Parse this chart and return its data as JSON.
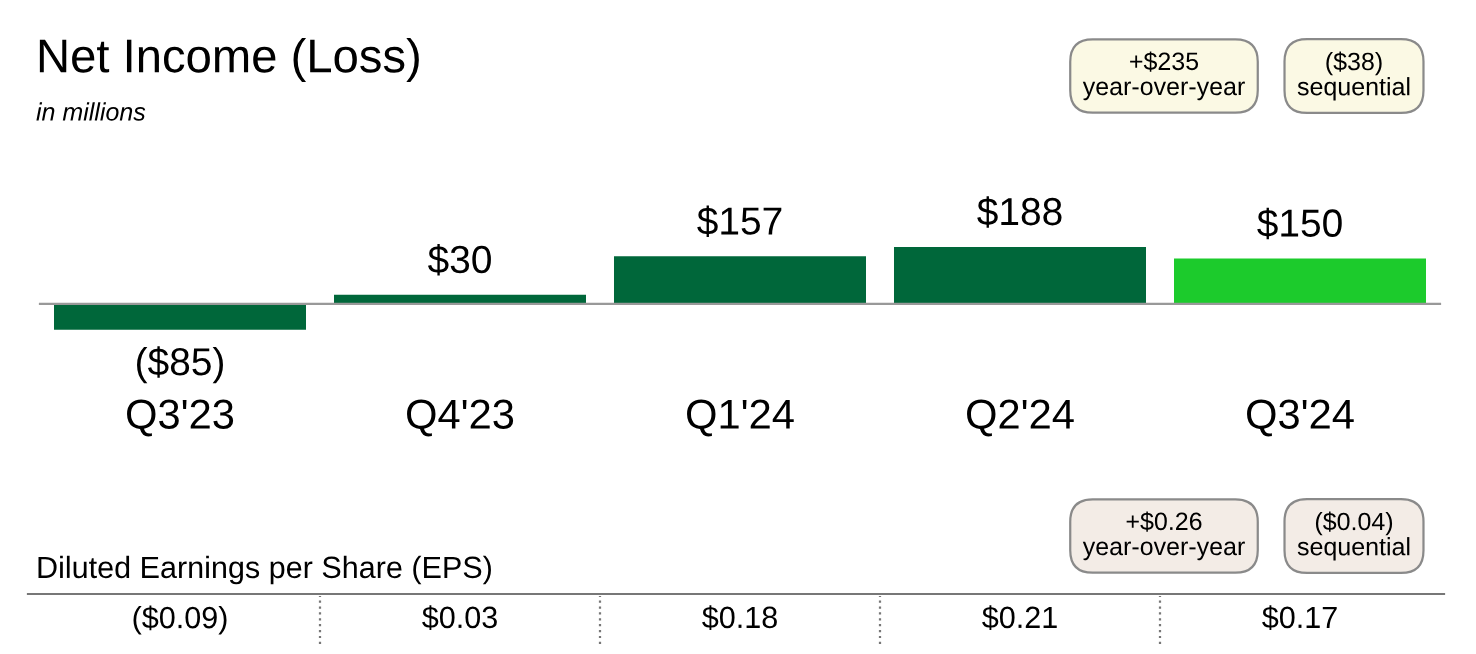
{
  "chart_data": {
    "type": "bar",
    "title": "Net Income (Loss)",
    "subtitle": "in millions",
    "categories": [
      "Q3'23",
      "Q4'23",
      "Q1'24",
      "Q2'24",
      "Q3'24"
    ],
    "values": [
      -85,
      30,
      157,
      188,
      150
    ],
    "value_labels": [
      "($85)",
      "$30",
      "$157",
      "$188",
      "$150"
    ],
    "colors": [
      "#00673a",
      "#00673a",
      "#00673a",
      "#00673a",
      "#1ccb2c"
    ],
    "data_labels": true,
    "grid": false,
    "legend": false,
    "annotations": [
      "+$235",
      "year-over-year",
      "($38)",
      "sequential",
      "Diluted Earnings per Share (EPS)",
      "($0.09)",
      "$0.03",
      "$0.18",
      "$0.21",
      "$0.17",
      "+$0.26",
      "year-over-year",
      "($0.04)",
      "sequential"
    ]
  }
}
